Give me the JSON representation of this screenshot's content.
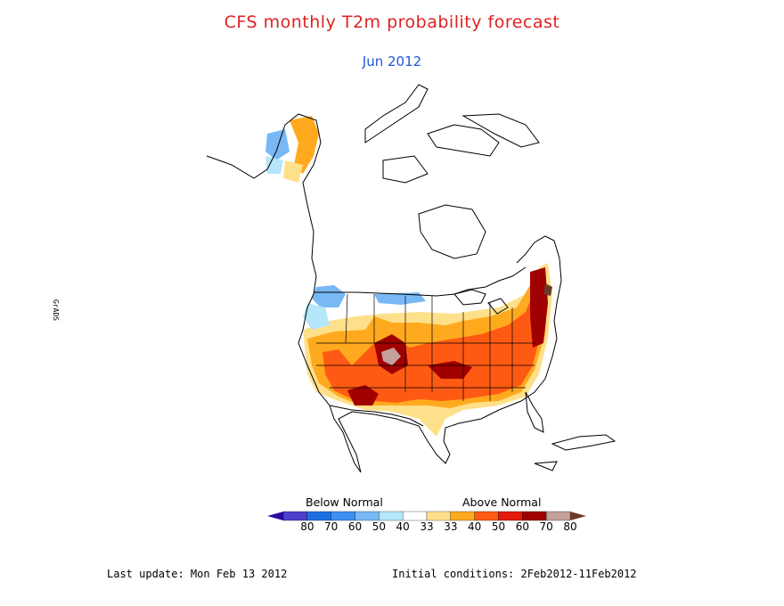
{
  "title": "CFS monthly T2m probability forecast",
  "subtitle": "Jun 2012",
  "legend": {
    "below_label": "Below Normal",
    "above_label": "Above Normal",
    "ticks": [
      "80",
      "70",
      "60",
      "50",
      "40",
      "33",
      "33",
      "40",
      "50",
      "60",
      "70",
      "80"
    ],
    "colors": [
      "#2a0aa0",
      "#4b3fcc",
      "#1d6fe0",
      "#3d8ff0",
      "#78b8f5",
      "#b5e6fa",
      "#ffffff",
      "#ffe08a",
      "#ffaa1e",
      "#ff5a14",
      "#e41a0a",
      "#a00000",
      "#c3a09a",
      "#6b3a2a"
    ]
  },
  "footer": {
    "last_update": "Last update: Mon Feb 13 2012",
    "initial_conditions": "Initial conditions: 2Feb2012-11Feb2012"
  },
  "side_mark": "GrADS"
}
